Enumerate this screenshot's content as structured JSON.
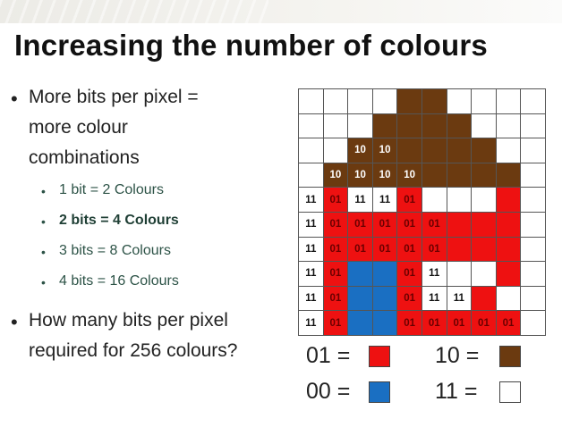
{
  "title": "Increasing the number of colours",
  "bullets": {
    "main1_line1": "More bits per pixel =",
    "main1_line2": "more colour",
    "main1_line3": "combinations",
    "sub": [
      {
        "text": "1 bit = 2 Colours",
        "bold": false
      },
      {
        "text": "2 bits = 4 Colours",
        "bold": true
      },
      {
        "text": "3 bits = 8 Colours",
        "bold": false
      },
      {
        "text": "4 bits = 16 Colours",
        "bold": false
      }
    ],
    "main2_line1": "How many bits per pixel",
    "main2_line2": "required for 256 colours?"
  },
  "bullet_glyph": "•",
  "colors": {
    "white": "#ffffff",
    "brown": "#6b3a10",
    "red": "#ee1111",
    "blue": "#1a6fc2"
  },
  "pixel_grid": {
    "rows": 10,
    "cols": 10,
    "fill": [
      "WWWWBBWWWW",
      "WWWBBBBWWW",
      "WWBBBBBBWW",
      "WBBBBBBBBW",
      "WRWWRWWWRW",
      "WRRRRRRRRW",
      "WRRRRRRRRW",
      "WRUURWWWRW",
      "WRUURWWRWW",
      "WRUURRRRRW"
    ],
    "labels": [
      [
        "",
        "",
        "",
        "",
        "",
        "",
        "",
        "",
        "",
        ""
      ],
      [
        "",
        "",
        "",
        "",
        "",
        "",
        "",
        "",
        "",
        ""
      ],
      [
        "",
        "",
        "10",
        "10",
        "",
        "",
        "",
        "",
        "",
        ""
      ],
      [
        "",
        "10",
        "10",
        "10",
        "10",
        "",
        "",
        "",
        "",
        ""
      ],
      [
        "11",
        "01",
        "11",
        "11",
        "01",
        "",
        "",
        "",
        "",
        ""
      ],
      [
        "11",
        "01",
        "01",
        "01",
        "01",
        "01",
        "",
        "",
        "",
        ""
      ],
      [
        "11",
        "01",
        "01",
        "01",
        "01",
        "01",
        "",
        "",
        "",
        ""
      ],
      [
        "11",
        "01",
        "",
        "",
        "01",
        "11",
        "",
        "",
        "",
        ""
      ],
      [
        "11",
        "01",
        "",
        "",
        "01",
        "11",
        "11",
        "",
        "",
        ""
      ],
      [
        "11",
        "01",
        "",
        "",
        "01",
        "01",
        "01",
        "01",
        "01",
        ""
      ]
    ]
  },
  "legend": {
    "red_code": "01 =",
    "blue_code": "00 =",
    "brown_code": "10 =",
    "white_code": "11 ="
  }
}
